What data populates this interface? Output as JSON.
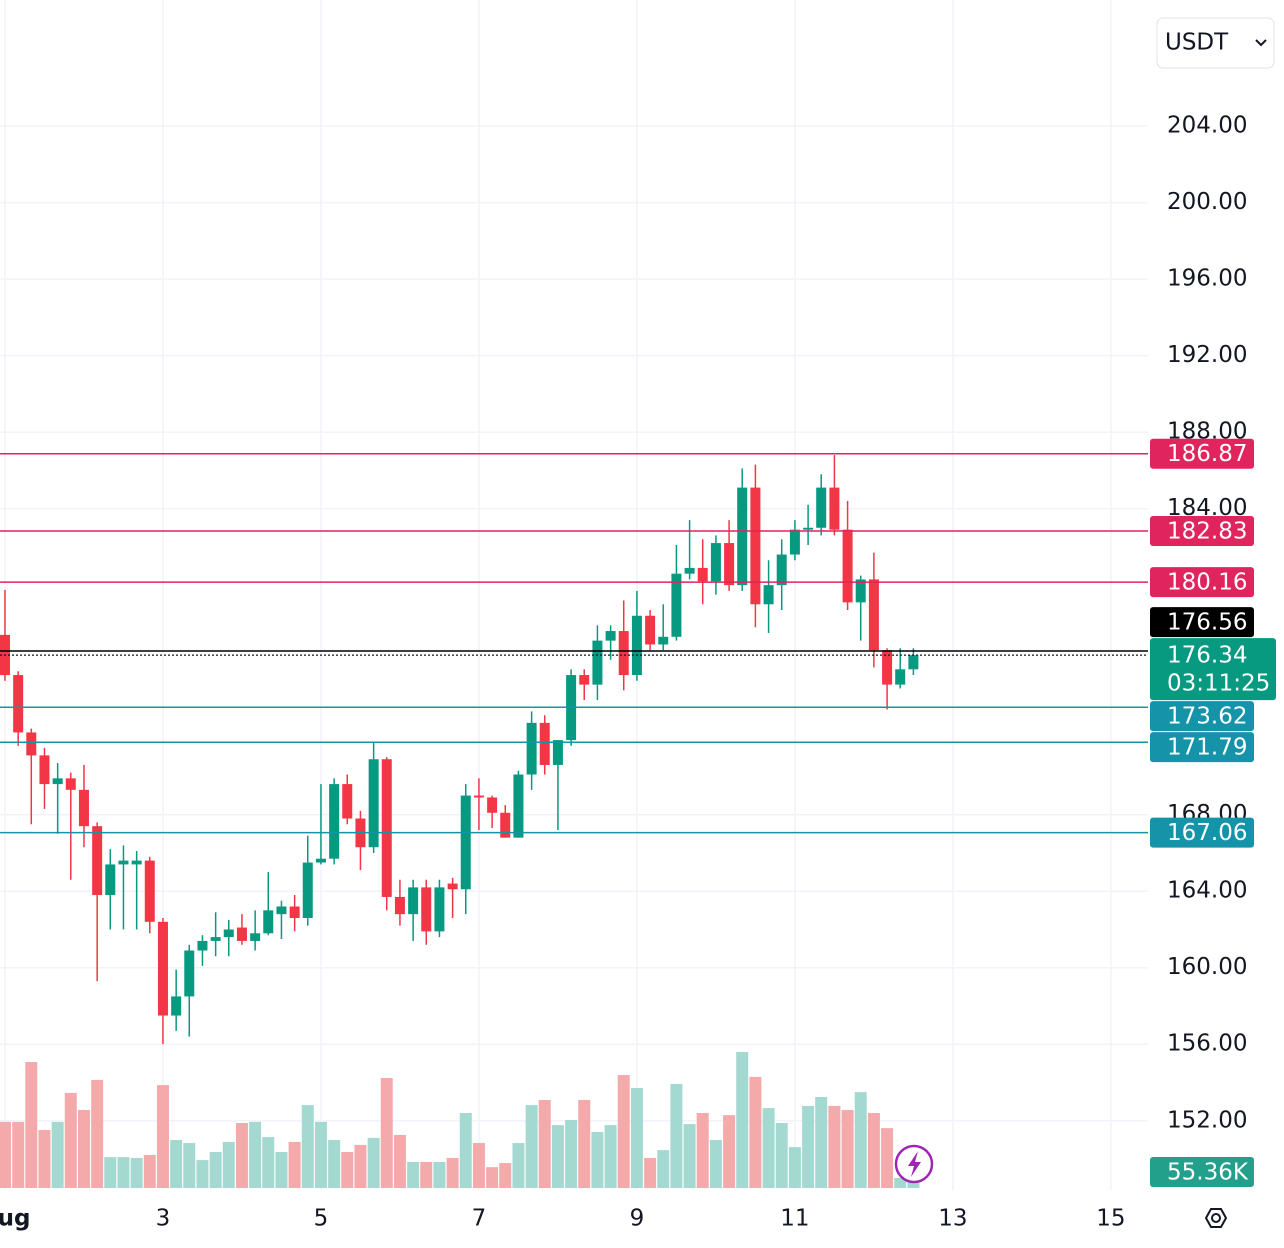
{
  "chart_data": {
    "type": "candlestick",
    "currency": "USDT",
    "x": [
      1,
      1.167,
      1.333,
      1.5,
      1.667,
      1.833,
      2,
      2.167,
      2.333,
      2.5,
      2.667,
      2.833,
      3,
      3.167,
      3.333,
      3.5,
      3.667,
      3.833,
      4,
      4.167,
      4.333,
      4.5,
      4.667,
      4.833,
      5,
      5.167,
      5.333,
      5.5,
      5.667,
      5.833,
      6,
      6.167,
      6.333,
      6.5,
      6.667,
      6.833,
      7,
      7.167,
      7.333,
      7.5,
      7.667,
      7.833,
      8,
      8.167,
      8.333,
      8.5,
      8.667,
      8.833,
      9,
      9.167,
      9.333,
      9.5,
      9.667,
      9.833,
      10,
      10.167,
      10.333,
      10.5,
      10.667,
      10.833,
      11,
      11.167,
      11.333,
      11.5,
      11.667,
      11.833,
      12,
      12.167,
      12.333,
      12.5
    ],
    "open": [
      177.4,
      175.3,
      172.3,
      171.1,
      169.6,
      169.9,
      169.3,
      167.4,
      163.8,
      165.4,
      165.4,
      165.6,
      162.4,
      157.5,
      158.5,
      160.9,
      161.4,
      161.6,
      162.1,
      161.4,
      161.8,
      162.8,
      163.2,
      162.6,
      165.5,
      165.7,
      169.6,
      167.8,
      166.3,
      170.9,
      163.7,
      162.8,
      164.2,
      161.9,
      164.4,
      164.1,
      169.0,
      168.9,
      168.1,
      166.8,
      170.1,
      172.8,
      170.6,
      171.9,
      175.3,
      174.8,
      177.1,
      177.6,
      175.3,
      178.4,
      176.9,
      177.3,
      180.6,
      180.9,
      180.2,
      182.2,
      180.0,
      185.1,
      179.0,
      180.0,
      181.6,
      182.9,
      183.0,
      185.1,
      182.9,
      179.1,
      180.3,
      176.6,
      174.8,
      175.6
    ],
    "high": [
      179.75,
      175.5,
      172.5,
      171.5,
      170.7,
      170.2,
      170.6,
      167.6,
      166.2,
      166.4,
      166.1,
      165.8,
      162.6,
      159.9,
      161.2,
      161.7,
      162.9,
      162.5,
      162.8,
      163.0,
      165.0,
      163.5,
      163.8,
      166.9,
      169.6,
      169.9,
      170.1,
      168.2,
      171.8,
      171.0,
      164.6,
      164.6,
      164.6,
      164.6,
      164.7,
      169.6,
      169.9,
      169.0,
      168.5,
      170.3,
      173.4,
      173.2,
      171.9,
      175.6,
      175.6,
      177.9,
      177.9,
      179.2,
      179.7,
      178.7,
      179.0,
      182.1,
      183.4,
      182.4,
      182.6,
      183.4,
      186.1,
      186.3,
      181.3,
      182.4,
      183.4,
      184.2,
      185.8,
      186.8,
      184.4,
      180.5,
      181.7,
      176.7,
      176.7,
      176.7
    ],
    "low": [
      175.0,
      171.6,
      167.5,
      168.3,
      167.0,
      164.6,
      166.3,
      159.3,
      162.0,
      162.0,
      162.0,
      161.8,
      156.0,
      156.7,
      156.4,
      160.1,
      160.6,
      160.6,
      161.2,
      160.9,
      161.7,
      161.5,
      161.9,
      162.2,
      165.4,
      165.4,
      167.5,
      165.1,
      166.0,
      163.0,
      162.2,
      161.4,
      161.2,
      161.6,
      162.6,
      162.8,
      167.2,
      167.3,
      166.8,
      166.8,
      169.3,
      170.1,
      167.2,
      171.6,
      174.0,
      174.0,
      176.1,
      174.5,
      175.0,
      176.6,
      176.6,
      177.1,
      180.3,
      179.0,
      179.5,
      179.7,
      179.7,
      177.8,
      177.5,
      178.7,
      181.3,
      182.1,
      182.6,
      182.6,
      178.7,
      177.1,
      175.7,
      173.5,
      174.6,
      175.3
    ],
    "close": [
      175.3,
      172.3,
      171.1,
      169.6,
      169.9,
      169.3,
      167.4,
      163.8,
      165.4,
      165.6,
      165.6,
      162.4,
      157.5,
      158.5,
      160.9,
      161.4,
      161.6,
      162.0,
      161.4,
      161.8,
      163.0,
      163.2,
      162.6,
      165.5,
      165.7,
      169.6,
      167.8,
      166.3,
      170.9,
      163.7,
      162.8,
      164.2,
      161.9,
      164.2,
      164.1,
      169.0,
      168.9,
      168.1,
      166.8,
      170.1,
      172.8,
      170.6,
      171.9,
      175.3,
      174.8,
      177.1,
      177.6,
      175.3,
      178.4,
      176.9,
      177.3,
      180.6,
      180.9,
      180.2,
      182.2,
      180.0,
      185.1,
      179.0,
      180.0,
      181.6,
      182.9,
      183.0,
      185.1,
      182.9,
      179.1,
      180.3,
      176.6,
      174.8,
      175.6,
      176.34
    ],
    "volume": [
      244,
      244,
      465,
      214,
      244,
      351,
      288,
      399,
      114,
      114,
      111,
      122,
      380,
      177,
      166,
      103,
      133,
      170,
      240,
      244,
      188,
      133,
      170,
      306,
      244,
      177,
      133,
      159,
      185,
      406,
      196,
      96,
      96,
      96,
      111,
      277,
      166,
      77,
      92,
      166,
      306,
      325,
      232,
      251,
      325,
      207,
      232,
      417,
      369,
      111,
      140,
      384,
      236,
      277,
      177,
      269,
      502,
      410,
      295,
      240,
      151,
      303,
      336,
      303,
      288,
      354,
      277,
      221,
      37,
      55.36
    ],
    "last_volume_label": "55.36K",
    "volume_ylim": [
      0,
      694
    ],
    "countdown": "03:11:25",
    "up_color": "#089981",
    "down_color": "#f23645",
    "volume_up_color": "#a3d9d1",
    "volume_down_color": "#f4aaab",
    "xlim": [
      0.937,
      15.47
    ],
    "xticks": [
      {
        "value": 1,
        "label": "ug"
      },
      3,
      5,
      7,
      9,
      11,
      13,
      15
    ],
    "ylim": [
      148.38,
      210.59
    ],
    "yticks": [
      {
        "value": 152,
        "label": "152.00"
      },
      {
        "value": 156,
        "label": "156.00"
      },
      {
        "value": 160,
        "label": "160.00"
      },
      {
        "value": 164,
        "label": "164.00"
      },
      {
        "value": 168,
        "label": "168.00"
      },
      {
        "value": 184,
        "label": "184.00"
      },
      {
        "value": 188,
        "label": "188.00"
      },
      {
        "value": 192,
        "label": "192.00"
      },
      {
        "value": 196,
        "label": "196.00"
      },
      {
        "value": 200,
        "label": "200.00"
      },
      {
        "value": 204,
        "label": "204.00"
      }
    ],
    "grid": true,
    "levels": [
      {
        "value": 186.87,
        "color": "#e0245e"
      },
      {
        "value": 182.83,
        "color": "#e0245e"
      },
      {
        "value": 180.16,
        "color": "#e0245e"
      },
      {
        "value": 176.56,
        "color": "#000000"
      },
      {
        "value": 173.62,
        "color": "#1593a8"
      },
      {
        "value": 171.79,
        "color": "#1593a8"
      },
      {
        "value": 167.06,
        "color": "#1593a8"
      }
    ]
  }
}
